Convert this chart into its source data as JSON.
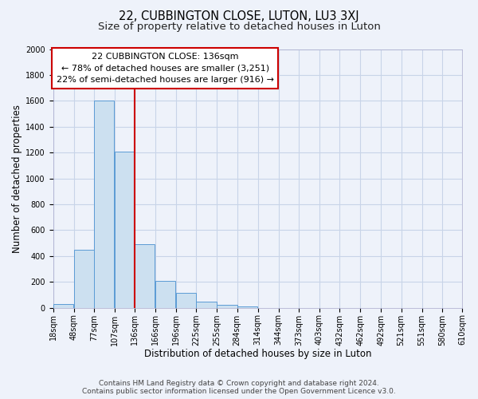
{
  "title": "22, CUBBINGTON CLOSE, LUTON, LU3 3XJ",
  "subtitle": "Size of property relative to detached houses in Luton",
  "xlabel": "Distribution of detached houses by size in Luton",
  "ylabel": "Number of detached properties",
  "bar_left_edges": [
    18,
    48,
    77,
    107,
    136,
    166,
    196,
    225,
    255,
    284,
    314,
    344,
    373,
    403,
    432,
    462,
    492,
    521,
    551,
    580
  ],
  "bar_heights": [
    30,
    450,
    1600,
    1210,
    490,
    210,
    115,
    45,
    20,
    10,
    0,
    0,
    0,
    0,
    0,
    0,
    0,
    0,
    0,
    0
  ],
  "bin_width": 29,
  "vline_x": 136,
  "bar_fill_color": "#cce0f0",
  "bar_edge_color": "#5b9bd5",
  "vline_color": "#cc0000",
  "annotation_title": "22 CUBBINGTON CLOSE: 136sqm",
  "annotation_line1": "← 78% of detached houses are smaller (3,251)",
  "annotation_line2": "22% of semi-detached houses are larger (916) →",
  "annotation_box_edgecolor": "#cc0000",
  "x_tick_labels": [
    "18sqm",
    "48sqm",
    "77sqm",
    "107sqm",
    "136sqm",
    "166sqm",
    "196sqm",
    "225sqm",
    "255sqm",
    "284sqm",
    "314sqm",
    "344sqm",
    "373sqm",
    "403sqm",
    "432sqm",
    "462sqm",
    "492sqm",
    "521sqm",
    "551sqm",
    "580sqm",
    "610sqm"
  ],
  "ylim": [
    0,
    2000
  ],
  "yticks": [
    0,
    200,
    400,
    600,
    800,
    1000,
    1200,
    1400,
    1600,
    1800,
    2000
  ],
  "grid_color": "#c8d4e8",
  "background_color": "#eef2fa",
  "plot_bg_color": "#eef2fa",
  "footer_line1": "Contains HM Land Registry data © Crown copyright and database right 2024.",
  "footer_line2": "Contains public sector information licensed under the Open Government Licence v3.0.",
  "title_fontsize": 10.5,
  "subtitle_fontsize": 9.5,
  "axis_label_fontsize": 8.5,
  "tick_fontsize": 7,
  "annotation_fontsize": 8,
  "footer_fontsize": 6.5
}
